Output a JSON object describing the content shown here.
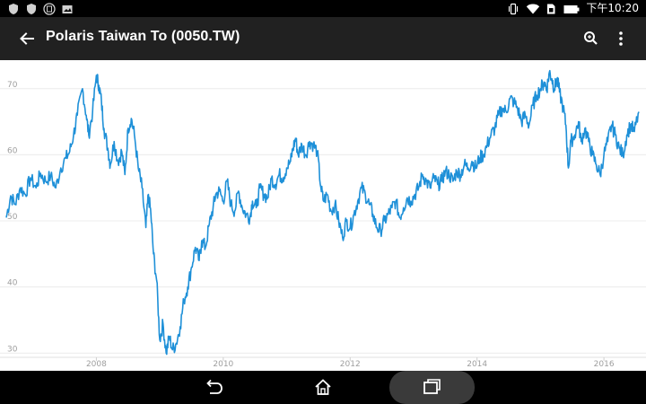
{
  "status_bar": {
    "time": "下午10:20",
    "left_icons": [
      "shield-icon",
      "shield-icon",
      "app-icon",
      "image-icon"
    ],
    "right_icons": [
      "vibrate-icon",
      "wifi-icon",
      "sim-icon",
      "battery-icon"
    ]
  },
  "app_bar": {
    "title": "Polaris Taiwan To (0050.TW)",
    "back_icon": "arrow-back-icon",
    "search_icon": "zoom-icon",
    "menu_icon": "more-vert-icon"
  },
  "nav_bar": {
    "icons": [
      "nav-back-icon",
      "nav-home-icon",
      "nav-recent-icon"
    ]
  },
  "colors": {
    "line": "#1e90d8",
    "grid": "#ececec",
    "app_bar": "#212121"
  },
  "chart_data": {
    "type": "line",
    "title": "",
    "xlabel": "",
    "ylabel": "",
    "x_ticks": [
      "2008",
      "2010",
      "2012",
      "2014",
      "2016"
    ],
    "y_ticks": [
      "30",
      "40",
      "50",
      "60",
      "70"
    ],
    "ylim": [
      29.5,
      73.5
    ],
    "xlim": [
      2006.58,
      2016.55
    ],
    "grid": true,
    "series": [
      {
        "values": [
          [
            2006.58,
            50.5
          ],
          [
            2006.65,
            53.8
          ],
          [
            2006.72,
            52.5
          ],
          [
            2006.8,
            55.0
          ],
          [
            2006.88,
            54.0
          ],
          [
            2006.96,
            56.5
          ],
          [
            2007.05,
            55.0
          ],
          [
            2007.12,
            57.2
          ],
          [
            2007.2,
            56.0
          ],
          [
            2007.28,
            56.8
          ],
          [
            2007.36,
            55.0
          ],
          [
            2007.44,
            58.0
          ],
          [
            2007.52,
            59.5
          ],
          [
            2007.58,
            60.5
          ],
          [
            2007.64,
            63.0
          ],
          [
            2007.7,
            66.0
          ],
          [
            2007.78,
            70.0
          ],
          [
            2007.84,
            66.0
          ],
          [
            2007.88,
            63.0
          ],
          [
            2007.94,
            66.5
          ],
          [
            2008.0,
            72.0
          ],
          [
            2008.04,
            70.5
          ],
          [
            2008.08,
            68.0
          ],
          [
            2008.12,
            64.0
          ],
          [
            2008.18,
            61.0
          ],
          [
            2008.22,
            58.5
          ],
          [
            2008.28,
            62.0
          ],
          [
            2008.34,
            59.0
          ],
          [
            2008.4,
            60.5
          ],
          [
            2008.45,
            57.0
          ],
          [
            2008.5,
            64.0
          ],
          [
            2008.55,
            65.5
          ],
          [
            2008.6,
            63.0
          ],
          [
            2008.66,
            58.0
          ],
          [
            2008.72,
            55.0
          ],
          [
            2008.78,
            49.0
          ],
          [
            2008.82,
            54.0
          ],
          [
            2008.86,
            51.0
          ],
          [
            2008.9,
            45.0
          ],
          [
            2008.95,
            41.0
          ],
          [
            2009.0,
            32.0
          ],
          [
            2009.05,
            34.5
          ],
          [
            2009.1,
            30.0
          ],
          [
            2009.15,
            32.5
          ],
          [
            2009.2,
            30.5
          ],
          [
            2009.26,
            31.5
          ],
          [
            2009.32,
            34.0
          ],
          [
            2009.38,
            38.0
          ],
          [
            2009.44,
            40.0
          ],
          [
            2009.5,
            43.0
          ],
          [
            2009.56,
            46.0
          ],
          [
            2009.62,
            44.0
          ],
          [
            2009.66,
            47.0
          ],
          [
            2009.72,
            46.0
          ],
          [
            2009.78,
            49.5
          ],
          [
            2009.84,
            52.0
          ],
          [
            2009.88,
            54.0
          ],
          [
            2009.94,
            54.5
          ],
          [
            2010.0,
            53.0
          ],
          [
            2010.06,
            56.0
          ],
          [
            2010.12,
            52.5
          ],
          [
            2010.18,
            51.5
          ],
          [
            2010.24,
            54.5
          ],
          [
            2010.3,
            52.0
          ],
          [
            2010.36,
            51.0
          ],
          [
            2010.42,
            50.5
          ],
          [
            2010.46,
            53.0
          ],
          [
            2010.52,
            52.0
          ],
          [
            2010.58,
            55.0
          ],
          [
            2010.64,
            54.0
          ],
          [
            2010.7,
            53.5
          ],
          [
            2010.76,
            56.5
          ],
          [
            2010.82,
            55.5
          ],
          [
            2010.88,
            57.0
          ],
          [
            2010.94,
            56.5
          ],
          [
            2011.0,
            58.0
          ],
          [
            2011.06,
            59.0
          ],
          [
            2011.1,
            61.0
          ],
          [
            2011.14,
            62.5
          ],
          [
            2011.18,
            60.0
          ],
          [
            2011.24,
            61.5
          ],
          [
            2011.3,
            60.0
          ],
          [
            2011.36,
            62.0
          ],
          [
            2011.42,
            61.5
          ],
          [
            2011.48,
            60.5
          ],
          [
            2011.54,
            55.0
          ],
          [
            2011.58,
            53.0
          ],
          [
            2011.64,
            54.0
          ],
          [
            2011.7,
            51.5
          ],
          [
            2011.76,
            52.5
          ],
          [
            2011.82,
            50.0
          ],
          [
            2011.88,
            47.5
          ],
          [
            2011.94,
            50.0
          ],
          [
            2012.0,
            49.0
          ],
          [
            2012.06,
            51.0
          ],
          [
            2012.12,
            53.0
          ],
          [
            2012.18,
            55.0
          ],
          [
            2012.24,
            54.0
          ],
          [
            2012.3,
            52.5
          ],
          [
            2012.36,
            51.0
          ],
          [
            2012.42,
            49.0
          ],
          [
            2012.48,
            48.5
          ],
          [
            2012.54,
            50.0
          ],
          [
            2012.6,
            51.0
          ],
          [
            2012.66,
            52.0
          ],
          [
            2012.72,
            53.0
          ],
          [
            2012.78,
            50.5
          ],
          [
            2012.84,
            52.0
          ],
          [
            2012.9,
            53.5
          ],
          [
            2012.96,
            53.0
          ],
          [
            2013.02,
            54.0
          ],
          [
            2013.08,
            55.0
          ],
          [
            2013.14,
            57.0
          ],
          [
            2013.2,
            56.0
          ],
          [
            2013.26,
            55.0
          ],
          [
            2013.32,
            56.5
          ],
          [
            2013.38,
            55.5
          ],
          [
            2013.44,
            56.0
          ],
          [
            2013.5,
            57.5
          ],
          [
            2013.56,
            57.0
          ],
          [
            2013.62,
            56.0
          ],
          [
            2013.68,
            57.5
          ],
          [
            2013.74,
            57.0
          ],
          [
            2013.8,
            58.5
          ],
          [
            2013.86,
            58.0
          ],
          [
            2013.92,
            59.0
          ],
          [
            2013.98,
            58.0
          ],
          [
            2014.04,
            59.5
          ],
          [
            2014.1,
            60.0
          ],
          [
            2014.16,
            61.5
          ],
          [
            2014.22,
            63.0
          ],
          [
            2014.28,
            64.0
          ],
          [
            2014.34,
            66.0
          ],
          [
            2014.4,
            67.0
          ],
          [
            2014.46,
            66.5
          ],
          [
            2014.52,
            68.5
          ],
          [
            2014.58,
            68.0
          ],
          [
            2014.64,
            67.0
          ],
          [
            2014.7,
            65.0
          ],
          [
            2014.76,
            66.0
          ],
          [
            2014.82,
            64.5
          ],
          [
            2014.88,
            67.5
          ],
          [
            2014.94,
            69.0
          ],
          [
            2015.0,
            70.0
          ],
          [
            2015.06,
            71.0
          ],
          [
            2015.1,
            70.0
          ],
          [
            2015.14,
            72.5
          ],
          [
            2015.18,
            71.5
          ],
          [
            2015.22,
            70.0
          ],
          [
            2015.26,
            71.5
          ],
          [
            2015.3,
            69.5
          ],
          [
            2015.36,
            67.0
          ],
          [
            2015.4,
            64.5
          ],
          [
            2015.44,
            58.0
          ],
          [
            2015.48,
            62.0
          ],
          [
            2015.54,
            63.0
          ],
          [
            2015.6,
            65.0
          ],
          [
            2015.64,
            62.0
          ],
          [
            2015.7,
            64.0
          ],
          [
            2015.76,
            62.0
          ],
          [
            2015.82,
            60.0
          ],
          [
            2015.88,
            58.5
          ],
          [
            2015.94,
            57.0
          ],
          [
            2016.0,
            60.0
          ],
          [
            2016.06,
            62.0
          ],
          [
            2016.12,
            64.5
          ],
          [
            2016.18,
            63.0
          ],
          [
            2016.24,
            61.0
          ],
          [
            2016.3,
            60.0
          ],
          [
            2016.36,
            63.0
          ],
          [
            2016.42,
            64.5
          ],
          [
            2016.48,
            63.5
          ],
          [
            2016.55,
            66.5
          ]
        ]
      }
    ]
  }
}
